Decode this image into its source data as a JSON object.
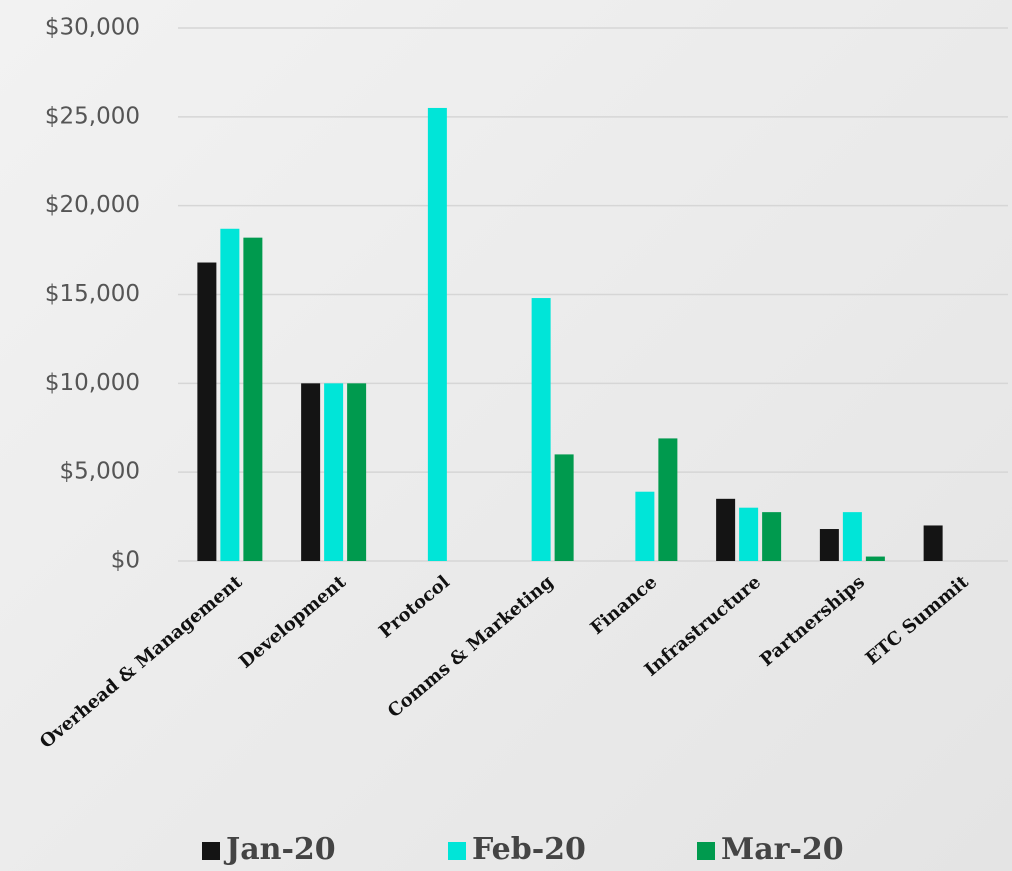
{
  "chart_data": {
    "type": "bar",
    "categories": [
      "Overhead & Management",
      "Development",
      "Protocol",
      "Comms & Marketing",
      "Finance",
      "Infrastructure",
      "Partnerships",
      "ETC Summit"
    ],
    "series": [
      {
        "name": "Jan-20",
        "color": "#141414",
        "values": [
          16800,
          10000,
          null,
          null,
          null,
          3500,
          1800,
          2000
        ]
      },
      {
        "name": "Feb-20",
        "color": "#00e5d8",
        "values": [
          18700,
          10000,
          25500,
          14800,
          3900,
          3000,
          2750,
          null
        ]
      },
      {
        "name": "Mar-20",
        "color": "#009a4e",
        "values": [
          18200,
          10000,
          null,
          6000,
          6900,
          2750,
          250,
          null
        ]
      }
    ],
    "ylim": [
      0,
      30000
    ],
    "yticks": [
      {
        "value": 0,
        "label": "$0"
      },
      {
        "value": 5000,
        "label": "$5,000"
      },
      {
        "value": 10000,
        "label": "$10,000"
      },
      {
        "value": 15000,
        "label": "$15,000"
      },
      {
        "value": 20000,
        "label": "$20,000"
      },
      {
        "value": 25000,
        "label": "$25,000"
      },
      {
        "value": 30000,
        "label": "$30,000"
      }
    ],
    "grid": true,
    "legend": "bottom"
  }
}
